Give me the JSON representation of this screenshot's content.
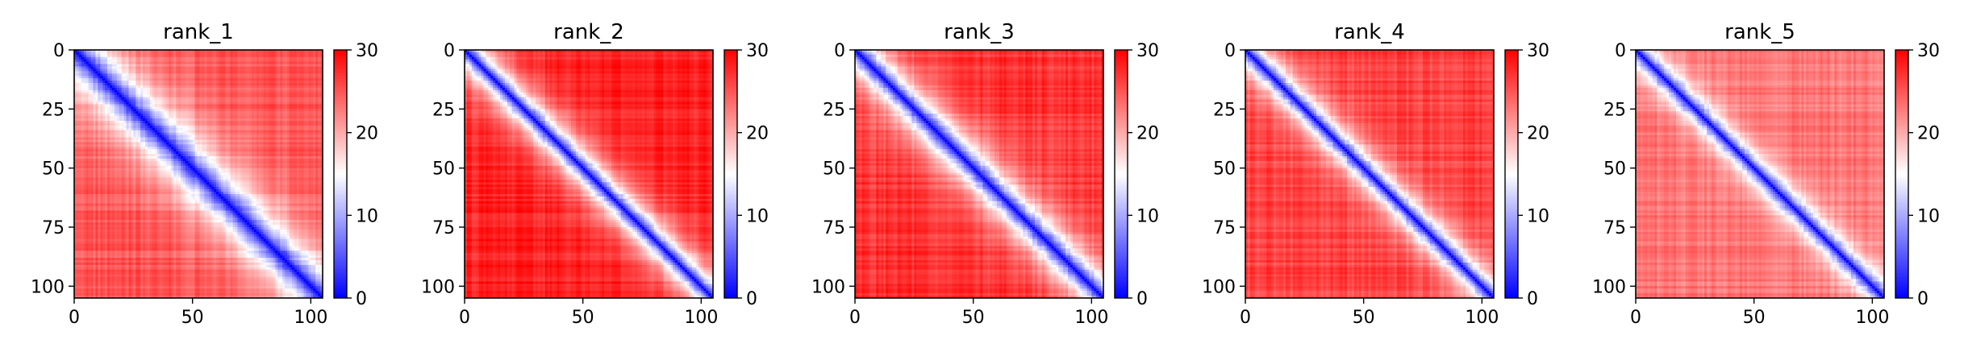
{
  "chart_data": [
    {
      "type": "heatmap",
      "title": "rank_1",
      "xlabel": "",
      "ylabel": "",
      "xlim": [
        0,
        105
      ],
      "ylim": [
        105,
        0
      ],
      "x_ticks": [
        0,
        50,
        100
      ],
      "y_ticks": [
        0,
        25,
        50,
        75,
        100
      ],
      "colorbar": {
        "min": 0,
        "max": 30,
        "ticks": [
          0,
          10,
          20,
          30
        ],
        "colormap": "bwr"
      },
      "matrix_size": 105,
      "matrix_description": "pairwise distance map; low values (blue) along the diagonal, wide blue band, high values (red) off-diagonal",
      "diagonal_band_width": 12,
      "background_value": 25
    },
    {
      "type": "heatmap",
      "title": "rank_2",
      "xlabel": "",
      "ylabel": "",
      "xlim": [
        0,
        105
      ],
      "ylim": [
        105,
        0
      ],
      "x_ticks": [
        0,
        50,
        100
      ],
      "y_ticks": [
        0,
        25,
        50,
        75,
        100
      ],
      "colorbar": {
        "min": 0,
        "max": 30,
        "ticks": [
          0,
          10,
          20,
          30
        ],
        "colormap": "bwr"
      },
      "matrix_size": 105,
      "diagonal_band_width": 8,
      "background_value": 28
    },
    {
      "type": "heatmap",
      "title": "rank_3",
      "xlabel": "",
      "ylabel": "",
      "xlim": [
        0,
        105
      ],
      "ylim": [
        105,
        0
      ],
      "x_ticks": [
        0,
        50,
        100
      ],
      "y_ticks": [
        0,
        25,
        50,
        75,
        100
      ],
      "colorbar": {
        "min": 0,
        "max": 30,
        "ticks": [
          0,
          10,
          20,
          30
        ],
        "colormap": "bwr"
      },
      "matrix_size": 105,
      "diagonal_band_width": 9,
      "background_value": 27
    },
    {
      "type": "heatmap",
      "title": "rank_4",
      "xlabel": "",
      "ylabel": "",
      "xlim": [
        0,
        105
      ],
      "ylim": [
        105,
        0
      ],
      "x_ticks": [
        0,
        50,
        100
      ],
      "y_ticks": [
        0,
        25,
        50,
        75,
        100
      ],
      "colorbar": {
        "min": 0,
        "max": 30,
        "ticks": [
          0,
          10,
          20,
          30
        ],
        "colormap": "bwr"
      },
      "matrix_size": 105,
      "diagonal_band_width": 7,
      "background_value": 26
    },
    {
      "type": "heatmap",
      "title": "rank_5",
      "xlabel": "",
      "ylabel": "",
      "xlim": [
        0,
        105
      ],
      "ylim": [
        105,
        0
      ],
      "x_ticks": [
        0,
        50,
        100
      ],
      "y_ticks": [
        0,
        25,
        50,
        75,
        100
      ],
      "colorbar": {
        "min": 0,
        "max": 30,
        "ticks": [
          0,
          10,
          20,
          30
        ],
        "colormap": "bwr"
      },
      "matrix_size": 105,
      "diagonal_band_width": 6,
      "background_value": 23
    }
  ],
  "colors": {
    "low": "#0000ff",
    "mid": "#ffffff",
    "high": "#ff0000",
    "axis": "#000000"
  }
}
